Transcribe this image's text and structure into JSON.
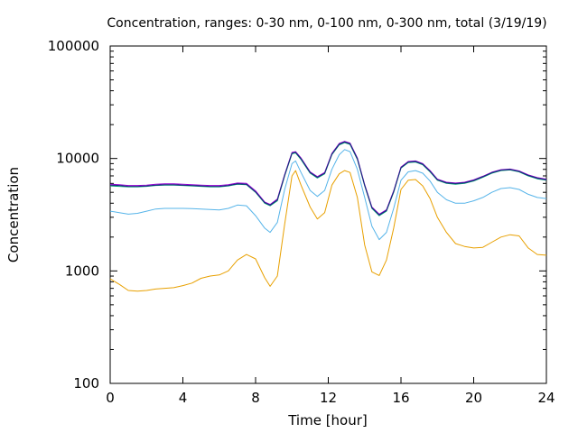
{
  "chart_data": {
    "type": "line",
    "title": "Concentration, ranges: 0-30 nm, 0-100 nm, 0-300 nm, total (3/19/19)",
    "xlabel": "Time [hour]",
    "ylabel": "Concentration",
    "xlim": [
      0,
      24
    ],
    "ylim": [
      100,
      100000
    ],
    "yscale": "log",
    "x_ticks": [
      0,
      4,
      8,
      12,
      16,
      20,
      24
    ],
    "x_tick_labels": [
      "0",
      "4",
      "8",
      "12",
      "16",
      "20",
      "24"
    ],
    "y_ticks": [
      100,
      1000,
      10000,
      100000
    ],
    "y_tick_labels": [
      "100",
      "1000",
      "10000",
      "100000"
    ],
    "grid": false,
    "x": [
      0,
      0.5,
      1,
      1.5,
      2,
      2.5,
      3,
      3.5,
      4,
      4.5,
      5,
      5.5,
      6,
      6.5,
      7,
      7.5,
      8,
      8.5,
      8.8,
      9.2,
      9.6,
      10,
      10.2,
      10.5,
      11,
      11.4,
      11.8,
      12.2,
      12.6,
      12.9,
      13.2,
      13.6,
      14,
      14.4,
      14.8,
      15.2,
      15.6,
      16,
      16.4,
      16.8,
      17.2,
      17.6,
      18,
      18.5,
      19,
      19.5,
      20,
      20.5,
      21,
      21.5,
      22,
      22.5,
      23,
      23.5,
      24
    ],
    "series": [
      {
        "color": "#e8a000",
        "values": [
          850,
          760,
          670,
          660,
          670,
          690,
          700,
          710,
          740,
          780,
          860,
          900,
          920,
          1000,
          1250,
          1400,
          1280,
          870,
          730,
          900,
          2600,
          7000,
          7800,
          5800,
          3700,
          2900,
          3300,
          5800,
          7300,
          7800,
          7500,
          4500,
          1700,
          980,
          910,
          1250,
          2400,
          5300,
          6400,
          6500,
          5700,
          4400,
          3000,
          2200,
          1750,
          1650,
          1600,
          1620,
          1800,
          2000,
          2100,
          2050,
          1600,
          1400,
          1380
        ]
      },
      {
        "color": "#56b4e9",
        "values": [
          3400,
          3300,
          3200,
          3250,
          3400,
          3550,
          3600,
          3600,
          3600,
          3580,
          3550,
          3520,
          3480,
          3600,
          3850,
          3800,
          3100,
          2400,
          2200,
          2700,
          5300,
          9000,
          9500,
          7500,
          5200,
          4600,
          5200,
          8000,
          10800,
          12000,
          11500,
          8000,
          4500,
          2500,
          1900,
          2200,
          3600,
          6400,
          7600,
          7800,
          7400,
          6300,
          5000,
          4300,
          4000,
          4000,
          4200,
          4500,
          5000,
          5400,
          5500,
          5300,
          4800,
          4500,
          4400
        ]
      },
      {
        "color": "#009e73",
        "values": [
          5700,
          5650,
          5600,
          5600,
          5650,
          5750,
          5800,
          5800,
          5750,
          5700,
          5650,
          5600,
          5600,
          5700,
          5900,
          5850,
          5000,
          4000,
          3800,
          4200,
          7000,
          11000,
          11200,
          9800,
          7400,
          6700,
          7300,
          10800,
          13200,
          13800,
          13300,
          9800,
          5700,
          3600,
          3100,
          3400,
          5000,
          8200,
          9200,
          9300,
          8800,
          7600,
          6400,
          6000,
          5900,
          6000,
          6300,
          6800,
          7400,
          7800,
          7900,
          7600,
          7000,
          6600,
          6400
        ]
      },
      {
        "color": "#9400d3",
        "values": [
          5900,
          5850,
          5750,
          5750,
          5800,
          5900,
          5950,
          5950,
          5900,
          5850,
          5800,
          5750,
          5750,
          5850,
          6050,
          6000,
          5150,
          4100,
          3900,
          4350,
          7200,
          11300,
          11500,
          10100,
          7600,
          6900,
          7500,
          11100,
          13600,
          14200,
          13700,
          10100,
          5850,
          3700,
          3200,
          3500,
          5150,
          8400,
          9400,
          9500,
          9000,
          7800,
          6550,
          6150,
          6050,
          6150,
          6450,
          6950,
          7550,
          7950,
          8050,
          7750,
          7150,
          6750,
          6550
        ]
      },
      {
        "color": "#1a237e",
        "values": [
          5800,
          5750,
          5650,
          5650,
          5700,
          5800,
          5850,
          5850,
          5800,
          5750,
          5700,
          5650,
          5650,
          5750,
          5950,
          5900,
          5050,
          4050,
          3850,
          4280,
          7100,
          11150,
          11350,
          9950,
          7500,
          6800,
          7400,
          10950,
          13400,
          14000,
          13500,
          9950,
          5780,
          3650,
          3150,
          3450,
          5080,
          8300,
          9300,
          9400,
          8900,
          7700,
          6480,
          6080,
          5980,
          6080,
          6380,
          6880,
          7480,
          7880,
          7980,
          7680,
          7080,
          6680,
          6480
        ]
      }
    ]
  }
}
